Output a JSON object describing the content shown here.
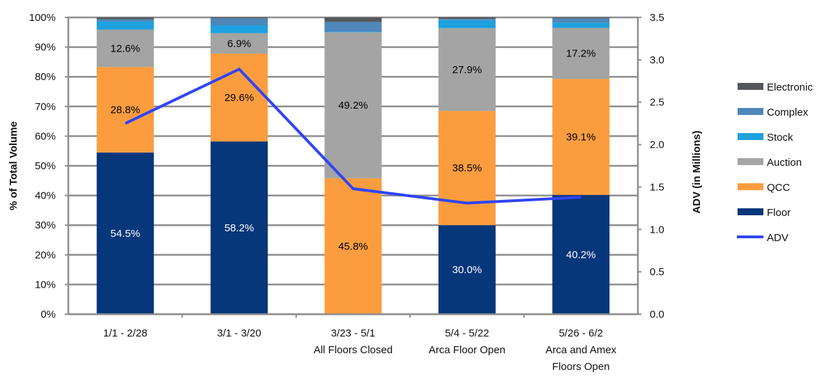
{
  "chart_data": {
    "type": "bar",
    "stacked": true,
    "title": "",
    "categories": [
      [
        "1/1 - 2/28"
      ],
      [
        "3/1 - 3/20"
      ],
      [
        "3/23 - 5/1",
        "All Floors Closed"
      ],
      [
        "5/4 - 5/22",
        "Arca Floor Open"
      ],
      [
        "5/26 - 6/2",
        "Arca and Amex",
        "Floors Open"
      ]
    ],
    "ylabel": "% of Total Volume",
    "ylim": [
      0,
      100
    ],
    "yticks": [
      "0%",
      "10%",
      "20%",
      "30%",
      "40%",
      "50%",
      "60%",
      "70%",
      "80%",
      "90%",
      "100%"
    ],
    "y2label": "ADV (in Millions)",
    "y2lim": [
      0,
      3.5
    ],
    "y2ticks": [
      "0.0",
      "0.5",
      "1.0",
      "1.5",
      "2.0",
      "2.5",
      "3.0",
      "3.5"
    ],
    "grid": true,
    "legend_position": "right",
    "series": [
      {
        "name": "Floor",
        "color": "#06377A",
        "label_color": "#ffffff",
        "values": [
          54.5,
          58.2,
          0.0,
          30.0,
          40.2
        ],
        "labels": [
          "54.5%",
          "58.2%",
          "",
          "30.0%",
          "40.2%"
        ]
      },
      {
        "name": "QCC",
        "color": "#FB9D3F",
        "label_color": "#000000",
        "values": [
          28.8,
          29.6,
          45.8,
          38.5,
          39.1
        ],
        "labels": [
          "28.8%",
          "29.6%",
          "45.8%",
          "38.5%",
          "39.1%"
        ]
      },
      {
        "name": "Auction",
        "color": "#A3A4A3",
        "label_color": "#000000",
        "values": [
          12.6,
          6.9,
          49.2,
          27.9,
          17.2
        ],
        "labels": [
          "12.6%",
          "6.9%",
          "49.2%",
          "27.9%",
          "17.2%"
        ]
      },
      {
        "name": "Stock",
        "color": "#1EA1DE",
        "label_color": "#000000",
        "values": [
          2.7,
          2.6,
          0.2,
          2.7,
          1.7
        ],
        "labels": [
          "",
          "",
          "",
          "",
          ""
        ]
      },
      {
        "name": "Complex",
        "color": "#4E87B9",
        "label_color": "#000000",
        "values": [
          0.8,
          2.4,
          3.3,
          0.4,
          1.5
        ],
        "labels": [
          "",
          "",
          "",
          "",
          ""
        ]
      },
      {
        "name": "Electronic",
        "color": "#55585B",
        "label_color": "#000000",
        "values": [
          0.6,
          0.3,
          1.5,
          0.5,
          0.3
        ],
        "labels": [
          "",
          "",
          "",
          "",
          ""
        ]
      }
    ],
    "line_series": {
      "name": "ADV",
      "color": "#2F45F4",
      "axis": "right",
      "values": [
        2.25,
        2.89,
        1.48,
        1.31,
        1.38
      ]
    },
    "legend": [
      "Electronic",
      "Complex",
      "Stock",
      "Auction",
      "QCC",
      "Floor",
      "ADV"
    ]
  }
}
